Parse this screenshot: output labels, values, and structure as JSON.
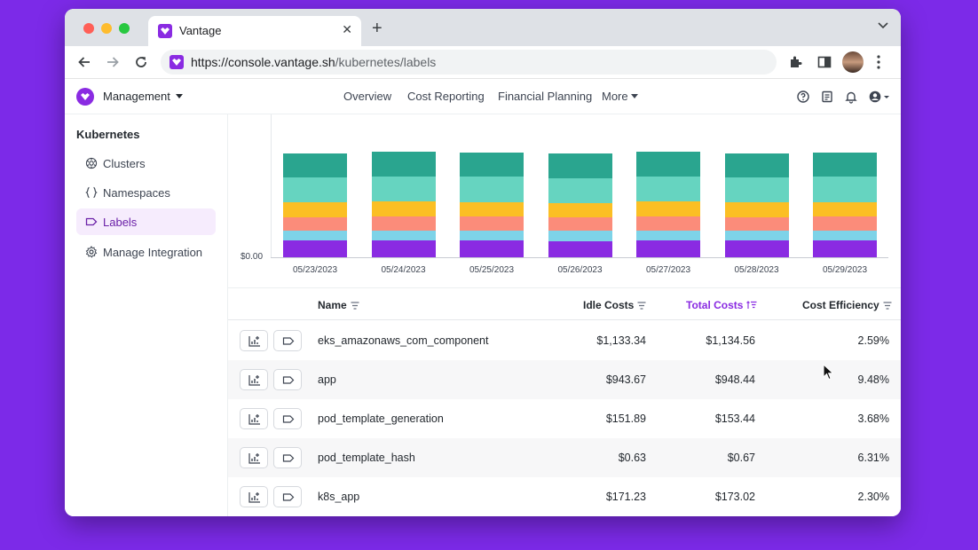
{
  "browser": {
    "tab_title": "Vantage",
    "url_host": "https://console.vantage.sh",
    "url_path": "/kubernetes/labels"
  },
  "header": {
    "workspace": "Management",
    "nav": [
      "Overview",
      "Cost Reporting",
      "Financial Planning",
      "More"
    ]
  },
  "sidebar": {
    "title": "Kubernetes",
    "items": [
      {
        "label": "Clusters",
        "icon": "cluster-icon"
      },
      {
        "label": "Namespaces",
        "icon": "braces-icon"
      },
      {
        "label": "Labels",
        "icon": "tag-icon",
        "active": true
      },
      {
        "label": "Manage Integration",
        "icon": "gear-icon"
      }
    ]
  },
  "chart_data": {
    "type": "bar",
    "stacked": true,
    "categories": [
      "05/23/2023",
      "05/24/2023",
      "05/25/2023",
      "05/26/2023",
      "05/27/2023",
      "05/28/2023",
      "05/29/2023"
    ],
    "y_tick_labels": [
      "$0.00"
    ],
    "segment_colors": [
      "#8a2be2",
      "#7dd3e8",
      "#fb8c7a",
      "#fbbf24",
      "#66d4c0",
      "#2aa58f"
    ],
    "stack_fractions": [
      0.155,
      0.095,
      0.13,
      0.135,
      0.235,
      0.23
    ],
    "relative_totals": [
      0.98,
      0.995,
      0.99,
      0.975,
      0.995,
      0.98,
      0.99
    ],
    "grid": false,
    "legend": "none"
  },
  "table": {
    "columns": [
      "Name",
      "Idle Costs",
      "Total Costs",
      "Cost Efficiency"
    ],
    "sorted_column": "Total Costs",
    "rows": [
      {
        "name": "eks_amazonaws_com_component",
        "idle": "$1,133.34",
        "total": "$1,134.56",
        "efficiency": "2.59%"
      },
      {
        "name": "app",
        "idle": "$943.67",
        "total": "$948.44",
        "efficiency": "9.48%"
      },
      {
        "name": "pod_template_generation",
        "idle": "$151.89",
        "total": "$153.44",
        "efficiency": "3.68%"
      },
      {
        "name": "pod_template_hash",
        "idle": "$0.63",
        "total": "$0.67",
        "efficiency": "6.31%"
      },
      {
        "name": "k8s_app",
        "idle": "$171.23",
        "total": "$173.02",
        "efficiency": "2.30%"
      }
    ]
  }
}
